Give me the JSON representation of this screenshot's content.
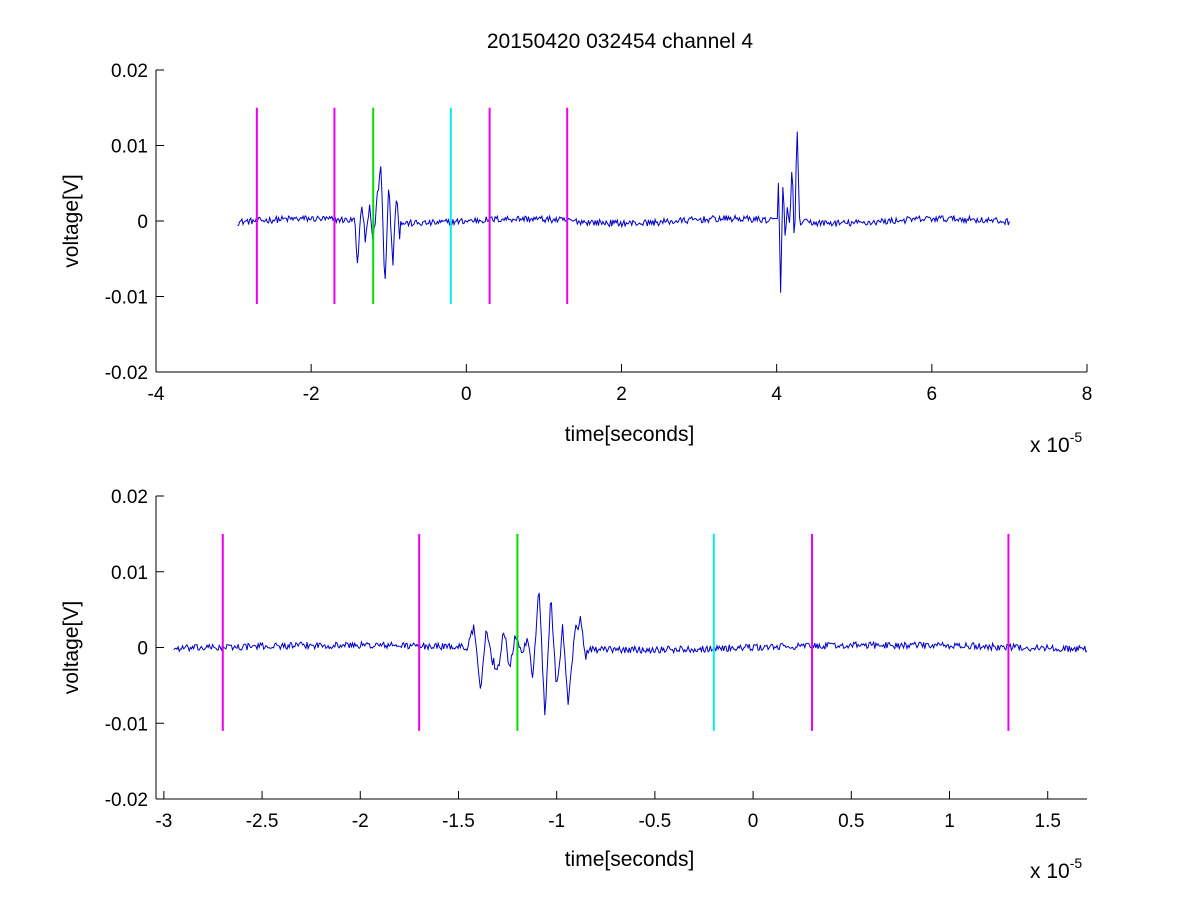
{
  "figure": {
    "title": "20150420 032454 channel 4"
  },
  "colors": {
    "signal": "#0000cc",
    "magenta": "#ee00ee",
    "green": "#00dd00",
    "cyan": "#00eeee",
    "axis": "#000000",
    "background": "#ffffff"
  },
  "chart_data": [
    {
      "type": "line",
      "title": "20150420 032454 channel 4",
      "xlabel": "time[seconds]",
      "ylabel": "voltage[V]",
      "x_multiplier": {
        "base": "x 10",
        "exponent": "-5"
      },
      "xlim": [
        -4,
        8
      ],
      "ylim": [
        -0.02,
        0.02
      ],
      "xticks": [
        -4,
        -2,
        0,
        2,
        4,
        6,
        8
      ],
      "xtick_labels": [
        "-4",
        "-2",
        "0",
        "2",
        "4",
        "6",
        "8"
      ],
      "yticks": [
        -0.02,
        -0.01,
        0,
        0.01,
        0.02
      ],
      "ytick_labels": [
        "-0.02",
        "-0.01",
        "0",
        "0.01",
        "0.02"
      ],
      "grid": false,
      "signal": {
        "x_range": [
          -2.95,
          7.0
        ],
        "baseline": 0.0
      },
      "bursts": [
        {
          "x": [
            -1.45,
            -1.4,
            -1.35,
            -1.3,
            -1.25,
            -1.2,
            -1.15,
            -1.1,
            -1.05,
            -1.0,
            -0.95,
            -0.9,
            -0.85
          ],
          "y": [
            0.0015,
            -0.006,
            0.0025,
            -0.003,
            0.0018,
            -0.0028,
            0.003,
            0.0076,
            -0.009,
            0.0056,
            -0.006,
            0.0038,
            -0.0035
          ]
        },
        {
          "x": [
            4.02,
            4.05,
            4.08,
            4.11,
            4.14,
            4.17,
            4.2,
            4.23,
            4.26,
            4.3
          ],
          "y": [
            0.007,
            -0.01,
            0.0055,
            -0.003,
            0.002,
            -0.0015,
            0.0085,
            -0.005,
            0.0138,
            -0.002
          ]
        }
      ],
      "markers": [
        {
          "x": -2.7,
          "color": "magenta",
          "y_range": [
            -0.011,
            0.015
          ]
        },
        {
          "x": -1.7,
          "color": "magenta",
          "y_range": [
            -0.011,
            0.015
          ]
        },
        {
          "x": -1.2,
          "color": "green",
          "y_range": [
            -0.011,
            0.015
          ]
        },
        {
          "x": -0.2,
          "color": "cyan",
          "y_range": [
            -0.011,
            0.015
          ]
        },
        {
          "x": 0.3,
          "color": "magenta",
          "y_range": [
            -0.011,
            0.015
          ]
        },
        {
          "x": 1.3,
          "color": "magenta",
          "y_range": [
            -0.011,
            0.015
          ]
        }
      ]
    },
    {
      "type": "line",
      "title": "",
      "xlabel": "time[seconds]",
      "ylabel": "voltage[V]",
      "x_multiplier": {
        "base": "x 10",
        "exponent": "-5"
      },
      "xlim": [
        -3.04,
        1.7
      ],
      "ylim": [
        -0.02,
        0.02
      ],
      "xticks": [
        -3,
        -2.5,
        -2,
        -1.5,
        -1,
        -0.5,
        0,
        0.5,
        1,
        1.5
      ],
      "xtick_labels": [
        "-3",
        "-2.5",
        "-2",
        "-1.5",
        "-1",
        "-0.5",
        "0",
        "0.5",
        "1",
        "1.5"
      ],
      "yticks": [
        -0.02,
        -0.01,
        0,
        0.01,
        0.02
      ],
      "ytick_labels": [
        "-0.02",
        "-0.01",
        "0",
        "0.01",
        "0.02"
      ],
      "grid": false,
      "signal": {
        "x_range": [
          -2.95,
          1.7
        ],
        "baseline": 0.0
      },
      "bursts": [
        {
          "x": [
            -1.45,
            -1.42,
            -1.39,
            -1.36,
            -1.33,
            -1.3,
            -1.27,
            -1.24,
            -1.21,
            -1.18,
            -1.15,
            -1.12,
            -1.09,
            -1.06,
            -1.03,
            -1.0,
            -0.97,
            -0.94,
            -0.91,
            -0.88,
            -0.85
          ],
          "y": [
            0.0005,
            0.0025,
            -0.006,
            0.0022,
            -0.0015,
            -0.003,
            0.0025,
            -0.0025,
            0.002,
            -0.001,
            0.0015,
            -0.004,
            0.008,
            -0.0095,
            0.0065,
            -0.0055,
            0.0025,
            -0.0075,
            0.002,
            0.0035,
            -0.0012
          ]
        }
      ],
      "markers": [
        {
          "x": -2.7,
          "color": "magenta",
          "y_range": [
            -0.011,
            0.015
          ]
        },
        {
          "x": -1.7,
          "color": "magenta",
          "y_range": [
            -0.011,
            0.015
          ]
        },
        {
          "x": -1.2,
          "color": "green",
          "y_range": [
            -0.011,
            0.015
          ]
        },
        {
          "x": -0.2,
          "color": "cyan",
          "y_range": [
            -0.011,
            0.015
          ]
        },
        {
          "x": 0.3,
          "color": "magenta",
          "y_range": [
            -0.011,
            0.015
          ]
        },
        {
          "x": 1.3,
          "color": "magenta",
          "y_range": [
            -0.011,
            0.015
          ]
        }
      ]
    }
  ]
}
